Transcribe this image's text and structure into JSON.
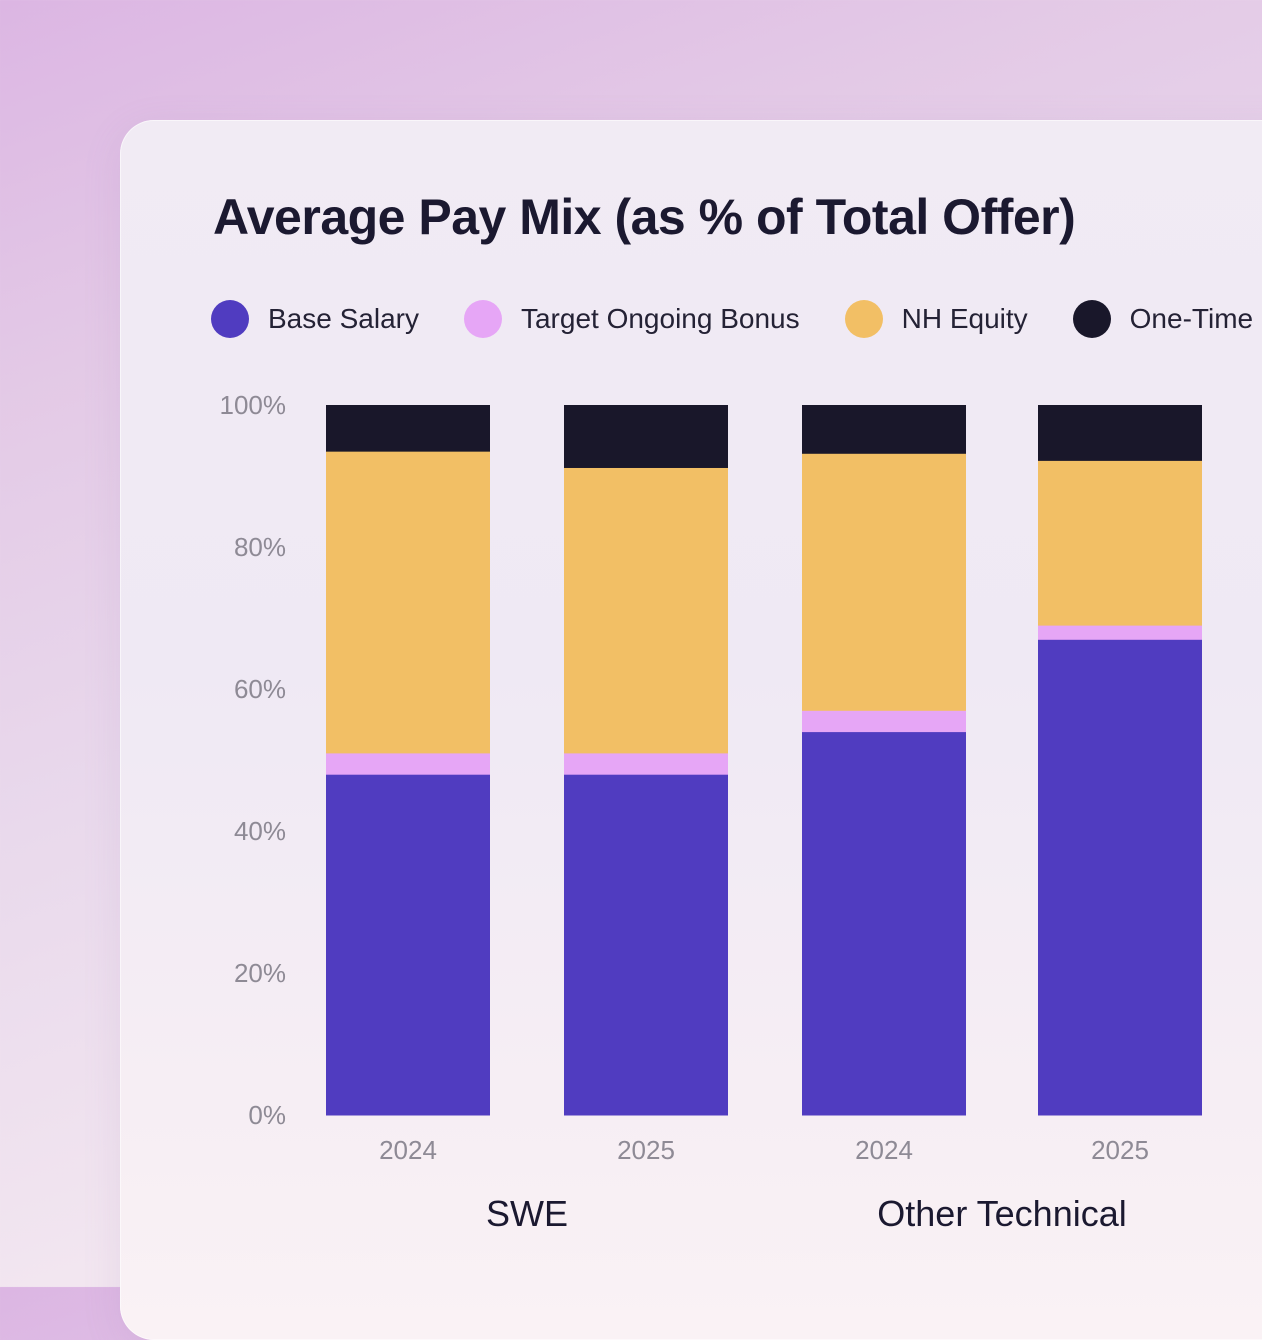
{
  "chart_data": {
    "type": "bar",
    "stacked": true,
    "title": "Average Pay Mix (as % of Total Offer)",
    "y_ticks": [
      "0%",
      "20%",
      "40%",
      "60%",
      "80%",
      "100%"
    ],
    "ylim": [
      0,
      100
    ],
    "grid": false,
    "legend_position": "top",
    "groups": [
      {
        "name": "SWE",
        "categories": [
          "2024",
          "2025"
        ]
      },
      {
        "name": "Other Technical",
        "categories": [
          "2024",
          "2025"
        ]
      }
    ],
    "categories": [
      "2024",
      "2025",
      "2024",
      "2025"
    ],
    "series": [
      {
        "name": "Base Salary",
        "color": "#503cc0",
        "values": [
          48,
          48,
          54,
          67
        ]
      },
      {
        "name": "Target Ongoing Bonus",
        "color": "#e6a6f6",
        "values": [
          3,
          3,
          3,
          2
        ]
      },
      {
        "name": "NH Equity",
        "color": "#f2bf65",
        "values": [
          42.5,
          40.2,
          36.2,
          23.2
        ]
      },
      {
        "name": "One-Time",
        "color": "#19172a",
        "values": [
          6.5,
          8.8,
          6.8,
          7.8
        ]
      }
    ]
  }
}
